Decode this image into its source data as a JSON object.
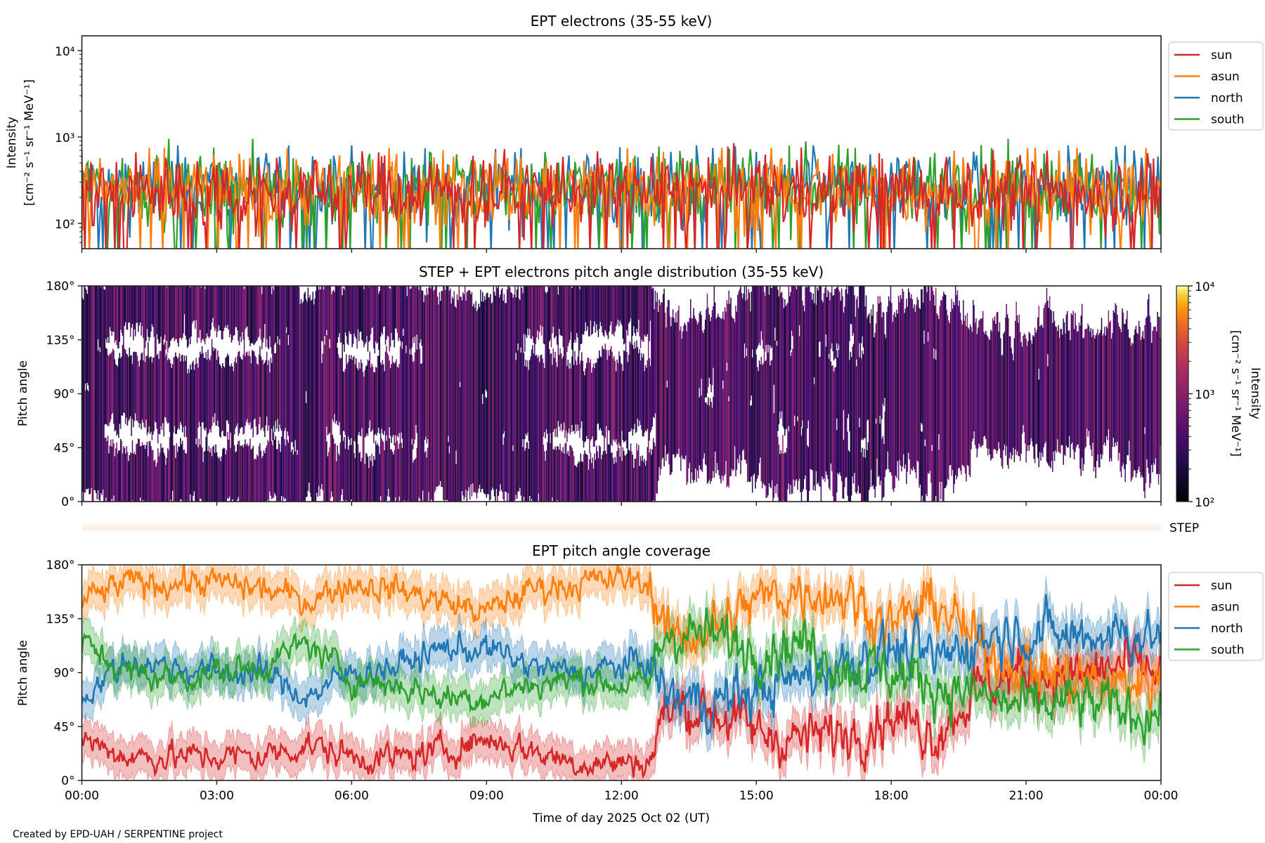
{
  "footer": "Created by EPD-UAH / SERPENTINE project",
  "colors": {
    "sun": "#d62728",
    "asun": "#ff7f0e",
    "north": "#1f77b4",
    "south": "#2ca02c",
    "step_band": "#fdf1ea"
  },
  "chart_data": [
    {
      "type": "line",
      "title": "EPT electrons (35-55 keV)",
      "ylabel": "Intensity",
      "ylabel_units": "[cm⁻² s⁻¹ sr⁻¹ MeV⁻¹]",
      "yscale": "log",
      "ylim": [
        51,
        14800
      ],
      "yticks": [
        {
          "value": 100,
          "label": "10²"
        },
        {
          "value": 1000,
          "label": "10³"
        },
        {
          "value": 10000,
          "label": "10⁴"
        }
      ],
      "x_hours": [
        0,
        24
      ],
      "legend": [
        "sun",
        "asun",
        "north",
        "south"
      ],
      "legend_placement": "outside-right-top",
      "series": [
        {
          "name": "north",
          "typical": 260,
          "range": [
            51,
            800
          ]
        },
        {
          "name": "south",
          "typical": 260,
          "range": [
            51,
            950
          ]
        },
        {
          "name": "asun",
          "typical": 250,
          "range": [
            51,
            750
          ]
        },
        {
          "name": "sun",
          "typical": 240,
          "range": [
            51,
            850
          ]
        }
      ]
    },
    {
      "type": "heatmap",
      "title": "STEP + EPT electrons pitch angle distribution (35-55 keV)",
      "ylabel": "Pitch angle",
      "ylim": [
        0,
        180
      ],
      "yticks": [
        "0°",
        "45°",
        "90°",
        "135°",
        "180°"
      ],
      "x_hours": [
        0,
        24
      ],
      "colorbar": {
        "label": "Intensity",
        "units": "[cm⁻² s⁻¹ sr⁻¹ MeV⁻¹]",
        "scale": "log",
        "range": [
          100,
          10000
        ],
        "ticks": [
          "10²",
          "10³",
          "10⁴"
        ],
        "colormap": "inferno"
      },
      "step_label": "STEP"
    },
    {
      "type": "line",
      "title": "EPT pitch angle coverage",
      "ylabel": "Pitch angle",
      "xlabel": "Time of day 2025 Oct 02 (UT)",
      "ylim": [
        0,
        180
      ],
      "yticks": [
        "0°",
        "45°",
        "90°",
        "135°",
        "180°"
      ],
      "xticks": [
        "00:00",
        "03:00",
        "06:00",
        "09:00",
        "12:00",
        "15:00",
        "18:00",
        "21:00",
        "00:00"
      ],
      "legend": [
        "sun",
        "asun",
        "north",
        "south"
      ],
      "legend_placement": "outside-right-top",
      "band_halfwidth_deg": 15,
      "hours": [
        0,
        1,
        2,
        3,
        4,
        5,
        6,
        7,
        8,
        9,
        10,
        11,
        12,
        12.6,
        13,
        14,
        15,
        16,
        17,
        18,
        19,
        20,
        21,
        22,
        23,
        24
      ],
      "series": [
        {
          "name": "sun",
          "values": [
            35,
            20,
            20,
            20,
            20,
            30,
            20,
            18,
            25,
            35,
            25,
            15,
            15,
            15,
            60,
            60,
            40,
            35,
            40,
            55,
            40,
            80,
            90,
            85,
            95,
            90
          ]
        },
        {
          "name": "asun",
          "values": [
            150,
            165,
            165,
            165,
            160,
            150,
            165,
            160,
            150,
            140,
            160,
            165,
            168,
            165,
            120,
            125,
            150,
            160,
            155,
            130,
            150,
            110,
            95,
            85,
            80,
            85
          ]
        },
        {
          "name": "north",
          "values": [
            70,
            100,
            95,
            90,
            90,
            70,
            90,
            95,
            110,
            110,
            95,
            90,
            95,
            100,
            70,
            65,
            75,
            85,
            100,
            110,
            100,
            120,
            125,
            120,
            125,
            120
          ]
        },
        {
          "name": "south",
          "values": [
            115,
            90,
            85,
            90,
            95,
            115,
            85,
            80,
            70,
            70,
            80,
            85,
            80,
            80,
            125,
            120,
            110,
            115,
            95,
            90,
            80,
            70,
            60,
            65,
            60,
            55
          ]
        }
      ]
    }
  ]
}
